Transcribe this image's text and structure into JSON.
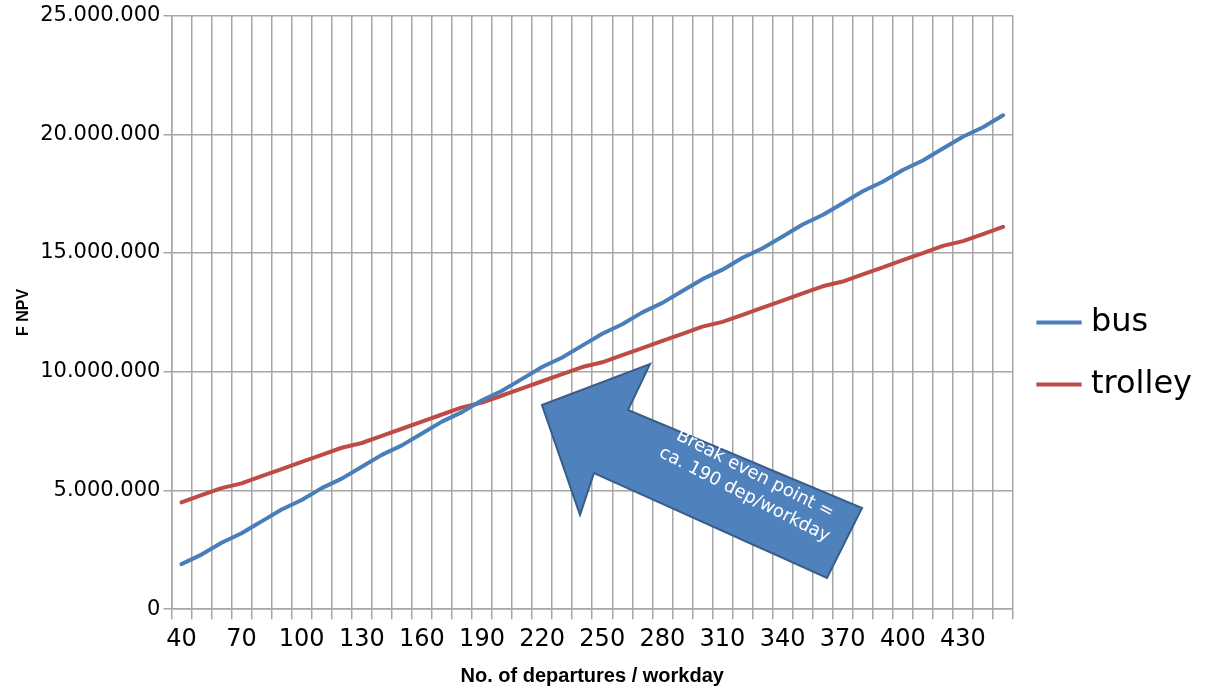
{
  "chart_data": {
    "type": "line",
    "xlabel": "No. of departures / workday",
    "ylabel": "F NPV",
    "categories": [
      "40",
      null,
      null,
      "70",
      null,
      null,
      "100",
      null,
      null,
      "130",
      null,
      null,
      "160",
      null,
      null,
      "190",
      null,
      null,
      "220",
      null,
      null,
      "250",
      null,
      null,
      "280",
      null,
      null,
      "310",
      null,
      null,
      "340",
      null,
      null,
      "370",
      null,
      null,
      "400",
      null,
      null,
      "430",
      null,
      null
    ],
    "series": [
      {
        "name": "bus",
        "color": "#4a7ebb",
        "values": [
          1900000,
          2300000,
          2800000,
          3200000,
          3700000,
          4200000,
          4600000,
          5100000,
          5500000,
          6000000,
          6500000,
          6900000,
          7400000,
          7900000,
          8300000,
          8800000,
          9200000,
          9700000,
          10200000,
          10600000,
          11100000,
          11600000,
          12000000,
          12500000,
          12900000,
          13400000,
          13900000,
          14300000,
          14800000,
          15200000,
          15700000,
          16200000,
          16600000,
          17100000,
          17600000,
          18000000,
          18500000,
          18900000,
          19400000,
          19900000,
          20300000,
          20800000
        ]
      },
      {
        "name": "trolley",
        "color": "#be4b48",
        "values": [
          4500000,
          4800000,
          5100000,
          5300000,
          5600000,
          5900000,
          6200000,
          6500000,
          6800000,
          7000000,
          7300000,
          7600000,
          7900000,
          8200000,
          8500000,
          8700000,
          9000000,
          9300000,
          9600000,
          9900000,
          10200000,
          10400000,
          10700000,
          11000000,
          11300000,
          11600000,
          11900000,
          12100000,
          12400000,
          12700000,
          13000000,
          13300000,
          13600000,
          13800000,
          14100000,
          14400000,
          14700000,
          15000000,
          15300000,
          15500000,
          15800000,
          16100000
        ]
      }
    ],
    "ylim": [
      0,
      25000000
    ],
    "yticks": [
      {
        "value": 0,
        "label": "0"
      },
      {
        "value": 5000000,
        "label": "5.000.000"
      },
      {
        "value": 10000000,
        "label": "10.000.000"
      },
      {
        "value": 15000000,
        "label": "15.000.000"
      },
      {
        "value": 20000000,
        "label": "20.000.000"
      },
      {
        "value": 25000000,
        "label": "25.000.000"
      }
    ],
    "grid": true,
    "legend": "right",
    "marker": "none",
    "line_style": "solid",
    "annotations": [
      "Break even point = ca. 190 dep/workday"
    ]
  }
}
